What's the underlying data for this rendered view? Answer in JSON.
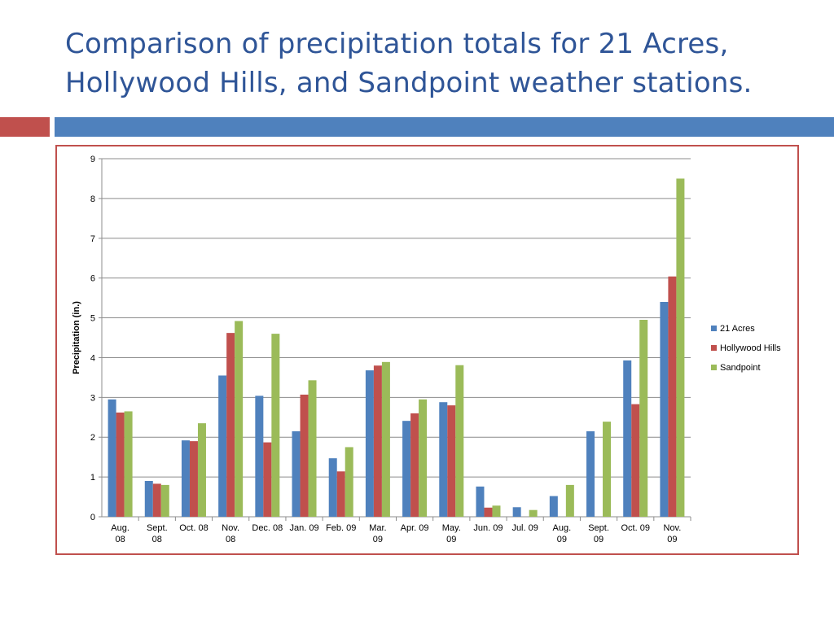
{
  "slide": {
    "title_line1": "Comparison of precipitation totals for 21 Acres,",
    "title_line2": "Hollywood Hills, and Sandpoint weather stations."
  },
  "chart_data": {
    "type": "bar",
    "title": "",
    "xlabel": "",
    "ylabel": "Precipitation (in.)",
    "ylim": [
      0,
      9
    ],
    "yticks": [
      0,
      1,
      2,
      3,
      4,
      5,
      6,
      7,
      8,
      9
    ],
    "grid": true,
    "legend_position": "right",
    "categories": [
      [
        "Aug.",
        "08"
      ],
      [
        "Sept.",
        "08"
      ],
      [
        "Oct. 08"
      ],
      [
        "Nov.",
        "08"
      ],
      [
        "Dec. 08"
      ],
      [
        "Jan. 09"
      ],
      [
        "Feb. 09"
      ],
      [
        "Mar.",
        "09"
      ],
      [
        "Apr. 09"
      ],
      [
        "May.",
        "09"
      ],
      [
        "Jun. 09"
      ],
      [
        "Jul. 09"
      ],
      [
        "Aug.",
        "09"
      ],
      [
        "Sept.",
        "09"
      ],
      [
        "Oct. 09"
      ],
      [
        "Nov.",
        "09"
      ]
    ],
    "series": [
      {
        "name": "21 Acres",
        "color": "#4f81bd",
        "values": [
          2.95,
          0.9,
          1.92,
          3.55,
          3.04,
          2.15,
          1.47,
          3.68,
          2.41,
          2.88,
          0.76,
          0.24,
          0.52,
          2.15,
          3.93,
          5.4
        ]
      },
      {
        "name": "Hollywood Hills",
        "color": "#c0504d",
        "values": [
          2.62,
          0.83,
          1.9,
          4.62,
          1.87,
          3.07,
          1.14,
          3.8,
          2.6,
          2.8,
          0.23,
          null,
          null,
          null,
          2.83,
          6.04
        ]
      },
      {
        "name": "Sandpoint",
        "color": "#9bbb59",
        "values": [
          2.65,
          0.8,
          2.35,
          4.92,
          4.6,
          3.43,
          1.75,
          3.89,
          2.95,
          3.81,
          0.28,
          0.17,
          0.8,
          2.39,
          4.95,
          8.5
        ]
      }
    ]
  }
}
